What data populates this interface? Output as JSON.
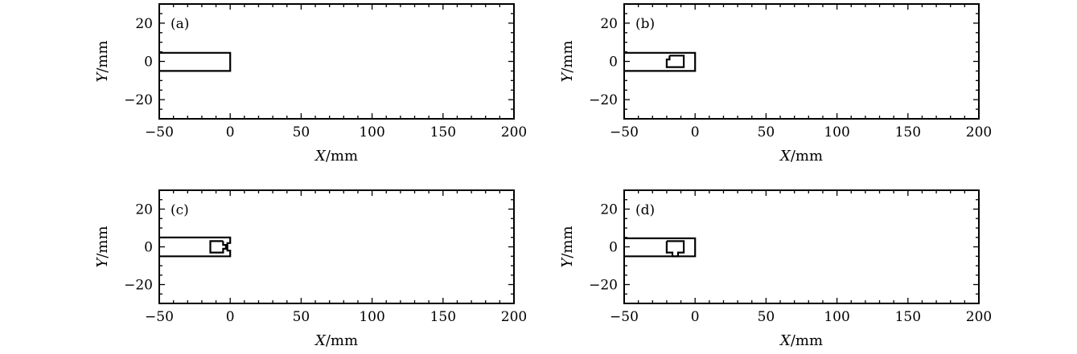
{
  "chart_data": [
    {
      "type": "line",
      "panel_label": "(a)",
      "xlabel_var": "X",
      "xlabel_unit": "/mm",
      "ylabel_var": "Y",
      "ylabel_unit": "/mm",
      "xlim": [
        -50,
        200
      ],
      "ylim": [
        -30,
        30
      ],
      "xticks": [
        -50,
        0,
        50,
        100,
        150,
        200
      ],
      "xtick_labels": [
        "−50",
        "0",
        "50",
        "100",
        "150",
        "200"
      ],
      "yticks": [
        -20,
        0,
        20
      ],
      "ytick_labels": [
        "−20",
        "0",
        "20"
      ],
      "grid": false,
      "series": [
        {
          "points": [
            [
              -50,
              4.5
            ],
            [
              0,
              4.5
            ],
            [
              0,
              -5
            ],
            [
              -50,
              -5
            ]
          ]
        }
      ]
    },
    {
      "type": "line",
      "panel_label": "(b)",
      "xlabel_var": "X",
      "xlabel_unit": "/mm",
      "ylabel_var": "Y",
      "ylabel_unit": "/mm",
      "xlim": [
        -50,
        200
      ],
      "ylim": [
        -30,
        30
      ],
      "xticks": [
        -50,
        0,
        50,
        100,
        150,
        200
      ],
      "xtick_labels": [
        "−50",
        "0",
        "50",
        "100",
        "150",
        "200"
      ],
      "yticks": [
        -20,
        0,
        20
      ],
      "ytick_labels": [
        "−20",
        "0",
        "20"
      ],
      "grid": false,
      "series": [
        {
          "points": [
            [
              -50,
              4.5
            ],
            [
              0,
              4.5
            ],
            [
              0,
              -5
            ],
            [
              -50,
              -5
            ]
          ]
        },
        {
          "points": [
            [
              -18,
              3
            ],
            [
              -8,
              3
            ],
            [
              -8,
              -3
            ],
            [
              -20,
              -3
            ],
            [
              -20,
              1
            ],
            [
              -18,
              1
            ],
            [
              -18,
              3
            ]
          ]
        }
      ]
    },
    {
      "type": "line",
      "panel_label": "(c)",
      "xlabel_var": "X",
      "xlabel_unit": "/mm",
      "ylabel_var": "Y",
      "ylabel_unit": "/mm",
      "xlim": [
        -50,
        200
      ],
      "ylim": [
        -30,
        30
      ],
      "xticks": [
        -50,
        0,
        50,
        100,
        150,
        200
      ],
      "xtick_labels": [
        "−50",
        "0",
        "50",
        "100",
        "150",
        "200"
      ],
      "yticks": [
        -20,
        0,
        20
      ],
      "ytick_labels": [
        "−20",
        "0",
        "20"
      ],
      "grid": false,
      "series": [
        {
          "points": [
            [
              -50,
              5
            ],
            [
              0,
              5
            ],
            [
              0,
              2
            ],
            [
              -2,
              2
            ],
            [
              -2,
              -2
            ],
            [
              0,
              -2
            ],
            [
              0,
              -5
            ],
            [
              -50,
              -5
            ]
          ]
        },
        {
          "points": [
            [
              -5,
              3
            ],
            [
              -14,
              3
            ],
            [
              -14,
              -3
            ],
            [
              -5,
              -3
            ],
            [
              -5,
              -1
            ],
            [
              -3,
              -1
            ],
            [
              -3,
              1
            ],
            [
              -5,
              1
            ],
            [
              -5,
              3
            ]
          ]
        }
      ]
    },
    {
      "type": "line",
      "panel_label": "(d)",
      "xlabel_var": "X",
      "xlabel_unit": "/mm",
      "ylabel_var": "Y",
      "ylabel_unit": "/mm",
      "xlim": [
        -50,
        200
      ],
      "ylim": [
        -30,
        30
      ],
      "xticks": [
        -50,
        0,
        50,
        100,
        150,
        200
      ],
      "xtick_labels": [
        "−50",
        "0",
        "50",
        "100",
        "150",
        "200"
      ],
      "yticks": [
        -20,
        0,
        20
      ],
      "ytick_labels": [
        "−20",
        "0",
        "20"
      ],
      "grid": false,
      "series": [
        {
          "points": [
            [
              -50,
              4.5
            ],
            [
              0,
              4.5
            ],
            [
              0,
              -5
            ],
            [
              -50,
              -5
            ]
          ]
        },
        {
          "points": [
            [
              -20,
              3
            ],
            [
              -8,
              3
            ],
            [
              -8,
              -3
            ],
            [
              -12,
              -3
            ],
            [
              -12,
              -5
            ],
            [
              -16,
              -5
            ],
            [
              -16,
              -3
            ],
            [
              -20,
              -3
            ],
            [
              -20,
              3
            ]
          ]
        }
      ]
    }
  ]
}
